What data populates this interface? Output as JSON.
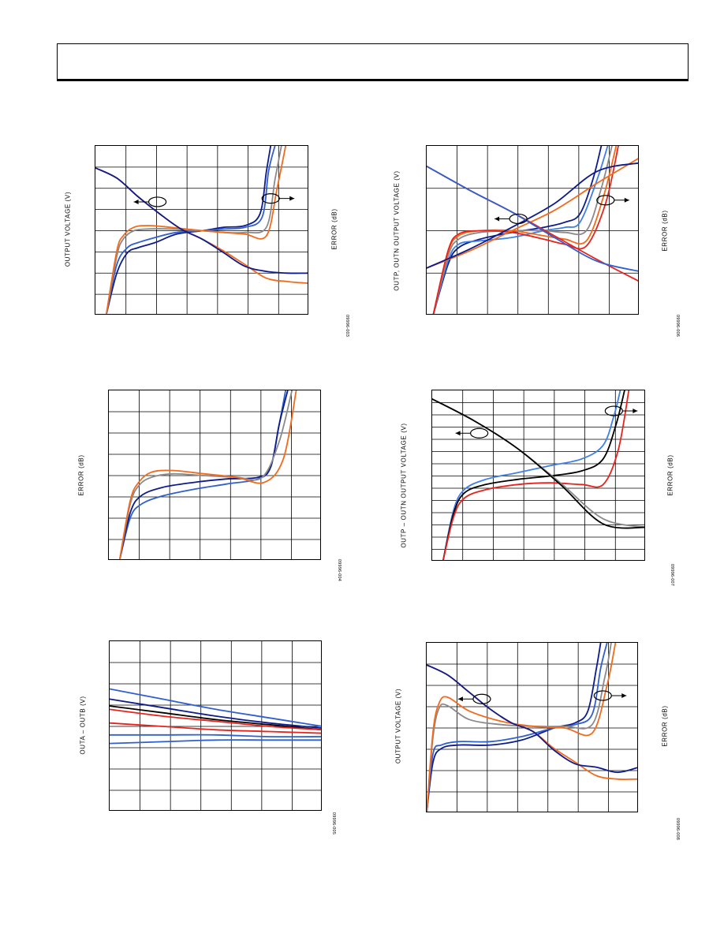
{
  "page": {
    "header_text": ""
  },
  "colors": {
    "navy": "#0d1b8c",
    "blue": "#2f5fd0",
    "light_blue": "#3f7fe8",
    "orange": "#f26a1b",
    "red": "#e8231c",
    "gray": "#8a8a8a",
    "black": "#000000"
  },
  "chart_data": [
    {
      "type": "line",
      "ylabel": "OUTPUT VOLTAGE (V)",
      "y2label": "ERROR (dB)",
      "figure_id": "09996-003",
      "grid": true,
      "grid_cols": 7,
      "grid_rows": 8,
      "xlim": [
        0,
        1
      ],
      "ylim": [
        0,
        1
      ],
      "series": [
        {
          "color": "navy",
          "role": "error",
          "x": [
            0.05,
            0.1,
            0.15,
            0.2,
            0.28,
            0.38,
            0.5,
            0.6,
            0.7,
            0.77,
            0.8,
            0.82
          ],
          "y": [
            0.0,
            0.25,
            0.37,
            0.4,
            0.43,
            0.48,
            0.5,
            0.52,
            0.53,
            0.6,
            0.85,
            1.0
          ]
        },
        {
          "color": "blue",
          "role": "error",
          "x": [
            0.05,
            0.1,
            0.15,
            0.2,
            0.28,
            0.38,
            0.5,
            0.6,
            0.7,
            0.78,
            0.81,
            0.84
          ],
          "y": [
            0.0,
            0.3,
            0.4,
            0.43,
            0.46,
            0.49,
            0.5,
            0.51,
            0.52,
            0.58,
            0.85,
            1.0
          ]
        },
        {
          "color": "gray",
          "role": "error",
          "x": [
            0.05,
            0.1,
            0.13,
            0.18,
            0.25,
            0.35,
            0.5,
            0.6,
            0.7,
            0.8,
            0.84,
            0.87
          ],
          "y": [
            0.0,
            0.35,
            0.45,
            0.5,
            0.51,
            0.51,
            0.5,
            0.49,
            0.49,
            0.52,
            0.8,
            1.0
          ]
        },
        {
          "color": "orange",
          "role": "error",
          "x": [
            0.05,
            0.1,
            0.13,
            0.18,
            0.25,
            0.35,
            0.5,
            0.6,
            0.7,
            0.8,
            0.85,
            0.89
          ],
          "y": [
            0.0,
            0.38,
            0.47,
            0.52,
            0.53,
            0.52,
            0.5,
            0.49,
            0.48,
            0.47,
            0.75,
            1.0
          ]
        },
        {
          "color": "orange",
          "role": "output",
          "x": [
            0.0,
            0.1,
            0.2,
            0.3,
            0.4,
            0.5,
            0.6,
            0.7,
            0.8,
            0.9,
            1.0
          ],
          "y": [
            0.87,
            0.81,
            0.7,
            0.6,
            0.51,
            0.45,
            0.38,
            0.3,
            0.22,
            0.2,
            0.19
          ]
        },
        {
          "color": "navy",
          "role": "output",
          "x": [
            0.0,
            0.1,
            0.2,
            0.3,
            0.4,
            0.5,
            0.6,
            0.7,
            0.8,
            0.9,
            1.0
          ],
          "y": [
            0.87,
            0.81,
            0.7,
            0.6,
            0.51,
            0.45,
            0.37,
            0.29,
            0.26,
            0.25,
            0.25
          ]
        }
      ],
      "markers": [
        {
          "cx": 0.29,
          "cy": 0.67,
          "dir": "left"
        },
        {
          "cx": 0.82,
          "cy": 0.69,
          "dir": "right"
        }
      ]
    },
    {
      "type": "line",
      "ylabel": "OUTP, OUTN OUTPUT VOLTAGE (V)",
      "y2label": "ERROR (dB)",
      "figure_id": "09996-006",
      "grid": true,
      "grid_cols": 7,
      "grid_rows": 4,
      "xlim": [
        0,
        1
      ],
      "ylim": [
        0,
        1
      ],
      "series": [
        {
          "color": "navy",
          "role": "error",
          "x": [
            0.03,
            0.1,
            0.15,
            0.25,
            0.4,
            0.55,
            0.65,
            0.72,
            0.78,
            0.82
          ],
          "y": [
            0.0,
            0.3,
            0.4,
            0.45,
            0.49,
            0.52,
            0.55,
            0.6,
            0.8,
            1.0
          ]
        },
        {
          "color": "light_blue",
          "role": "error",
          "x": [
            0.03,
            0.1,
            0.15,
            0.25,
            0.4,
            0.55,
            0.65,
            0.72,
            0.8,
            0.85
          ],
          "y": [
            0.0,
            0.32,
            0.42,
            0.44,
            0.46,
            0.5,
            0.52,
            0.55,
            0.8,
            1.0
          ]
        },
        {
          "color": "gray",
          "role": "error",
          "x": [
            0.03,
            0.1,
            0.15,
            0.25,
            0.4,
            0.55,
            0.65,
            0.75,
            0.82,
            0.87
          ],
          "y": [
            0.0,
            0.35,
            0.45,
            0.49,
            0.5,
            0.5,
            0.49,
            0.5,
            0.75,
            1.0
          ]
        },
        {
          "color": "orange",
          "role": "error",
          "x": [
            0.03,
            0.1,
            0.15,
            0.25,
            0.4,
            0.55,
            0.65,
            0.75,
            0.83,
            0.89
          ],
          "y": [
            0.0,
            0.37,
            0.47,
            0.5,
            0.5,
            0.47,
            0.45,
            0.44,
            0.7,
            1.0
          ]
        },
        {
          "color": "red",
          "role": "error",
          "x": [
            0.03,
            0.1,
            0.15,
            0.25,
            0.4,
            0.55,
            0.65,
            0.75,
            0.84,
            0.9
          ],
          "y": [
            0.0,
            0.38,
            0.48,
            0.5,
            0.49,
            0.45,
            0.42,
            0.41,
            0.66,
            1.0
          ]
        },
        {
          "color": "orange",
          "role": "output",
          "x": [
            0.0,
            0.2,
            0.4,
            0.6,
            0.8,
            1.0
          ],
          "y": [
            0.28,
            0.38,
            0.5,
            0.62,
            0.78,
            0.93
          ]
        },
        {
          "color": "navy",
          "role": "output",
          "x": [
            0.0,
            0.2,
            0.4,
            0.6,
            0.8,
            1.0
          ],
          "y": [
            0.28,
            0.39,
            0.52,
            0.66,
            0.85,
            0.9
          ]
        },
        {
          "color": "red",
          "role": "output",
          "x": [
            0.0,
            0.2,
            0.4,
            0.6,
            0.8,
            1.0
          ],
          "y": [
            0.88,
            0.74,
            0.61,
            0.47,
            0.33,
            0.2
          ]
        },
        {
          "color": "blue",
          "role": "output",
          "x": [
            0.0,
            0.2,
            0.4,
            0.6,
            0.8,
            1.0
          ],
          "y": [
            0.88,
            0.74,
            0.61,
            0.46,
            0.32,
            0.26
          ]
        }
      ],
      "markers": [
        {
          "cx": 0.43,
          "cy": 0.57,
          "dir": "left"
        },
        {
          "cx": 0.84,
          "cy": 0.68,
          "dir": "right"
        }
      ]
    },
    {
      "type": "line",
      "ylabel": "ERROR (dB)",
      "figure_id": "09996-004",
      "grid": true,
      "grid_cols": 7,
      "grid_rows": 8,
      "xlim": [
        0,
        1
      ],
      "ylim": [
        0,
        1
      ],
      "series": [
        {
          "color": "blue",
          "role": "error",
          "x": [
            0.05,
            0.1,
            0.15,
            0.25,
            0.4,
            0.55,
            0.7,
            0.76,
            0.8,
            0.83
          ],
          "y": [
            0.0,
            0.25,
            0.33,
            0.38,
            0.42,
            0.45,
            0.48,
            0.55,
            0.8,
            1.0
          ]
        },
        {
          "color": "navy",
          "role": "error",
          "x": [
            0.05,
            0.1,
            0.15,
            0.25,
            0.4,
            0.55,
            0.7,
            0.76,
            0.8,
            0.84
          ],
          "y": [
            0.0,
            0.28,
            0.38,
            0.43,
            0.46,
            0.48,
            0.49,
            0.55,
            0.8,
            1.0
          ]
        },
        {
          "color": "gray",
          "role": "error",
          "x": [
            0.05,
            0.1,
            0.14,
            0.2,
            0.3,
            0.45,
            0.6,
            0.72,
            0.8,
            0.86
          ],
          "y": [
            0.0,
            0.33,
            0.44,
            0.49,
            0.51,
            0.5,
            0.49,
            0.49,
            0.7,
            1.0
          ]
        },
        {
          "color": "orange",
          "role": "error",
          "x": [
            0.05,
            0.1,
            0.14,
            0.2,
            0.3,
            0.45,
            0.6,
            0.73,
            0.82,
            0.88
          ],
          "y": [
            0.0,
            0.35,
            0.46,
            0.52,
            0.53,
            0.51,
            0.49,
            0.46,
            0.6,
            1.0
          ]
        }
      ],
      "markers": []
    },
    {
      "type": "line",
      "ylabel": "OUTP – OUTN OUTPUT VOLTAGE (V)",
      "y2label": "ERROR (dB)",
      "figure_id": "09996-007",
      "grid": true,
      "grid_cols": 7,
      "grid_rows": 14,
      "xlim": [
        0,
        1
      ],
      "ylim": [
        0,
        1
      ],
      "series": [
        {
          "color": "light_blue",
          "role": "error",
          "x": [
            0.05,
            0.1,
            0.15,
            0.25,
            0.4,
            0.55,
            0.7,
            0.8,
            0.85,
            0.88
          ],
          "y": [
            0.0,
            0.3,
            0.42,
            0.48,
            0.52,
            0.56,
            0.6,
            0.68,
            0.85,
            1.0
          ]
        },
        {
          "color": "black",
          "role": "error",
          "x": [
            0.05,
            0.1,
            0.15,
            0.25,
            0.4,
            0.55,
            0.7,
            0.8,
            0.86,
            0.9
          ],
          "y": [
            0.0,
            0.28,
            0.4,
            0.45,
            0.48,
            0.5,
            0.53,
            0.6,
            0.8,
            1.0
          ]
        },
        {
          "color": "red",
          "role": "error",
          "x": [
            0.05,
            0.1,
            0.15,
            0.25,
            0.4,
            0.55,
            0.7,
            0.8,
            0.87,
            0.92
          ],
          "y": [
            0.0,
            0.26,
            0.37,
            0.42,
            0.45,
            0.46,
            0.45,
            0.45,
            0.65,
            1.0
          ]
        },
        {
          "color": "gray",
          "role": "output",
          "x": [
            0.0,
            0.2,
            0.4,
            0.6,
            0.8,
            1.0
          ],
          "y": [
            0.95,
            0.82,
            0.66,
            0.46,
            0.25,
            0.2
          ]
        },
        {
          "color": "black",
          "role": "output",
          "x": [
            0.0,
            0.2,
            0.4,
            0.6,
            0.8,
            1.0
          ],
          "y": [
            0.95,
            0.82,
            0.66,
            0.45,
            0.22,
            0.2
          ]
        }
      ],
      "markers": [
        {
          "cx": 0.22,
          "cy": 0.75,
          "dir": "left"
        },
        {
          "cx": 0.85,
          "cy": 0.88,
          "dir": "right"
        }
      ]
    },
    {
      "type": "line",
      "ylabel": "OUTA – OUTB (V)",
      "figure_id": "09996-005",
      "grid": true,
      "grid_cols": 7,
      "grid_rows": 8,
      "xlim": [
        0,
        1
      ],
      "ylim": [
        0,
        1
      ],
      "series": [
        {
          "color": "blue",
          "role": "output",
          "x": [
            0.0,
            0.25,
            0.5,
            0.75,
            1.0
          ],
          "y": [
            0.72,
            0.66,
            0.6,
            0.55,
            0.5
          ]
        },
        {
          "color": "navy",
          "role": "output",
          "x": [
            0.0,
            0.25,
            0.5,
            0.75,
            1.0
          ],
          "y": [
            0.66,
            0.61,
            0.56,
            0.52,
            0.49
          ]
        },
        {
          "color": "black",
          "role": "output",
          "x": [
            0.0,
            0.25,
            0.5,
            0.75,
            1.0
          ],
          "y": [
            0.62,
            0.58,
            0.54,
            0.51,
            0.48
          ]
        },
        {
          "color": "red",
          "role": "output",
          "x": [
            0.0,
            0.25,
            0.5,
            0.75,
            1.0
          ],
          "y": [
            0.6,
            0.56,
            0.53,
            0.5,
            0.48
          ]
        },
        {
          "color": "red",
          "role": "output",
          "x": [
            0.0,
            0.25,
            0.5,
            0.75,
            1.0
          ],
          "y": [
            0.52,
            0.5,
            0.48,
            0.47,
            0.46
          ]
        },
        {
          "color": "blue",
          "role": "output",
          "x": [
            0.0,
            0.25,
            0.5,
            0.75,
            1.0
          ],
          "y": [
            0.45,
            0.45,
            0.45,
            0.44,
            0.44
          ]
        },
        {
          "color": "blue",
          "role": "output",
          "x": [
            0.0,
            0.25,
            0.5,
            0.75,
            1.0
          ],
          "y": [
            0.4,
            0.41,
            0.42,
            0.42,
            0.42
          ]
        }
      ],
      "markers": []
    },
    {
      "type": "line",
      "ylabel": "OUTPUT VOLTAGE (V)",
      "y2label": "ERROR (dB)",
      "figure_id": "09996-008",
      "grid": true,
      "grid_cols": 7,
      "grid_rows": 8,
      "xlim": [
        0,
        1
      ],
      "ylim": [
        0,
        1
      ],
      "series": [
        {
          "color": "navy",
          "role": "error",
          "x": [
            0.0,
            0.03,
            0.07,
            0.15,
            0.3,
            0.45,
            0.6,
            0.7,
            0.76,
            0.8,
            0.82
          ],
          "y": [
            0.0,
            0.3,
            0.38,
            0.4,
            0.4,
            0.43,
            0.5,
            0.53,
            0.6,
            0.85,
            1.0
          ]
        },
        {
          "color": "blue",
          "role": "error",
          "x": [
            0.0,
            0.03,
            0.07,
            0.15,
            0.3,
            0.45,
            0.6,
            0.7,
            0.78,
            0.82,
            0.85
          ],
          "y": [
            0.0,
            0.35,
            0.4,
            0.42,
            0.42,
            0.45,
            0.5,
            0.52,
            0.58,
            0.85,
            1.0
          ]
        },
        {
          "color": "gray",
          "role": "error",
          "x": [
            0.0,
            0.03,
            0.06,
            0.1,
            0.2,
            0.35,
            0.5,
            0.65,
            0.78,
            0.84,
            0.87
          ],
          "y": [
            0.0,
            0.45,
            0.62,
            0.63,
            0.55,
            0.52,
            0.51,
            0.51,
            0.52,
            0.8,
            1.0
          ]
        },
        {
          "color": "orange",
          "role": "error",
          "x": [
            0.0,
            0.03,
            0.06,
            0.1,
            0.2,
            0.35,
            0.5,
            0.65,
            0.78,
            0.85,
            0.89
          ],
          "y": [
            0.0,
            0.48,
            0.65,
            0.68,
            0.6,
            0.54,
            0.51,
            0.5,
            0.47,
            0.75,
            1.0
          ]
        },
        {
          "color": "orange",
          "role": "output",
          "x": [
            0.0,
            0.1,
            0.2,
            0.3,
            0.4,
            0.5,
            0.6,
            0.7,
            0.8,
            0.9,
            1.0
          ],
          "y": [
            0.87,
            0.81,
            0.71,
            0.61,
            0.53,
            0.48,
            0.38,
            0.3,
            0.22,
            0.2,
            0.2
          ]
        },
        {
          "color": "navy",
          "role": "output",
          "x": [
            0.0,
            0.1,
            0.2,
            0.3,
            0.4,
            0.5,
            0.6,
            0.7,
            0.8,
            0.9,
            1.0
          ],
          "y": [
            0.87,
            0.81,
            0.71,
            0.61,
            0.53,
            0.48,
            0.37,
            0.29,
            0.27,
            0.24,
            0.27
          ]
        }
      ],
      "markers": [
        {
          "cx": 0.26,
          "cy": 0.67,
          "dir": "left"
        },
        {
          "cx": 0.83,
          "cy": 0.69,
          "dir": "right"
        }
      ]
    }
  ]
}
